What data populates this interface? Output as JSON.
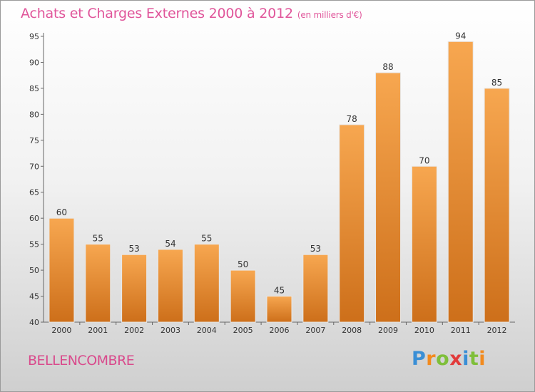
{
  "title": "Achats et Charges Externes 2000 à 2012",
  "subtitle": "(en milliers d'€)",
  "place": "BELLENCOMBRE",
  "logo": {
    "text": "Proxiti",
    "letters": [
      {
        "ch": "P",
        "color": "#3a8fd6"
      },
      {
        "ch": "r",
        "color": "#f28a1e"
      },
      {
        "ch": "o",
        "color": "#7fbf3a"
      },
      {
        "ch": "x",
        "color": "#e23b3b"
      },
      {
        "ch": "i",
        "color": "#3a8fd6"
      },
      {
        "ch": "t",
        "color": "#7fbf3a"
      },
      {
        "ch": "i",
        "color": "#f28a1e"
      }
    ]
  },
  "colors": {
    "bar_light": "#f7a750",
    "bar_dark": "#cd6f1a",
    "title": "#e0559a",
    "place": "#d94a8c"
  },
  "chart_data": {
    "type": "bar",
    "title": "Achats et Charges Externes 2000 à 2012",
    "subtitle": "(en milliers d'€)",
    "xlabel": "",
    "ylabel": "",
    "categories": [
      "2000",
      "2001",
      "2002",
      "2003",
      "2004",
      "2005",
      "2006",
      "2007",
      "2008",
      "2009",
      "2010",
      "2011",
      "2012"
    ],
    "values": [
      60,
      55,
      53,
      54,
      55,
      50,
      45,
      53,
      78,
      88,
      70,
      94,
      85
    ],
    "ylim": [
      40,
      95
    ],
    "yticks": [
      40,
      45,
      50,
      55,
      60,
      65,
      70,
      75,
      80,
      85,
      90,
      95
    ],
    "grid": false,
    "data_labels": true
  }
}
